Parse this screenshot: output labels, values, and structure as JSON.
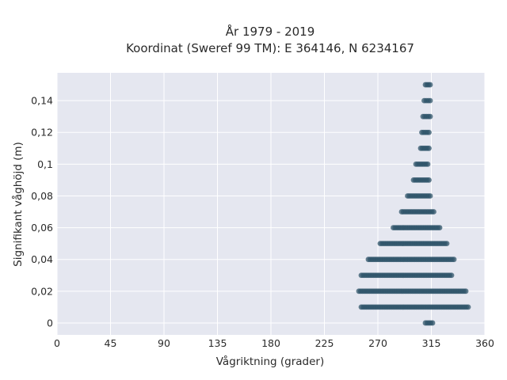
{
  "chart_data": {
    "type": "scatter",
    "title": "År 1979 - 2019",
    "subtitle": "Koordinat (Sweref 99 TM): E 364146, N 6234167",
    "xlabel": "Vågriktning (grader)",
    "ylabel": "Signifikant våghöjd (m)",
    "xlim": [
      0,
      360
    ],
    "ylim": [
      -0.0075,
      0.1575
    ],
    "x_ticks": [
      0,
      45,
      90,
      135,
      180,
      225,
      270,
      315,
      360
    ],
    "x_tick_labels": [
      "0",
      "45",
      "90",
      "135",
      "180",
      "225",
      "270",
      "315",
      "360"
    ],
    "y_ticks": [
      0,
      0.02,
      0.04,
      0.06,
      0.08,
      0.1,
      0.12,
      0.14
    ],
    "y_tick_labels": [
      "0",
      "0,02",
      "0,04",
      "0,06",
      "0,08",
      "0,1",
      "0,12",
      "0,14"
    ],
    "grid": true,
    "background": "#e5e7f0",
    "marker_color": "#2f5469",
    "series": [
      {
        "name": "",
        "ranges": [
          {
            "y": 0.0,
            "x_min": 310,
            "x_max": 316
          },
          {
            "y": 0.01,
            "x_min": 256,
            "x_max": 346
          },
          {
            "y": 0.02,
            "x_min": 254,
            "x_max": 344
          },
          {
            "y": 0.03,
            "x_min": 256,
            "x_max": 332
          },
          {
            "y": 0.04,
            "x_min": 262,
            "x_max": 334
          },
          {
            "y": 0.05,
            "x_min": 272,
            "x_max": 328
          },
          {
            "y": 0.06,
            "x_min": 283,
            "x_max": 322
          },
          {
            "y": 0.07,
            "x_min": 290,
            "x_max": 317
          },
          {
            "y": 0.08,
            "x_min": 295,
            "x_max": 314
          },
          {
            "y": 0.09,
            "x_min": 300,
            "x_max": 313
          },
          {
            "y": 0.1,
            "x_min": 302,
            "x_max": 312
          },
          {
            "y": 0.11,
            "x_min": 306,
            "x_max": 313
          },
          {
            "y": 0.12,
            "x_min": 307,
            "x_max": 313
          },
          {
            "y": 0.13,
            "x_min": 308,
            "x_max": 314
          },
          {
            "y": 0.14,
            "x_min": 309,
            "x_max": 314
          },
          {
            "y": 0.15,
            "x_min": 310,
            "x_max": 314
          }
        ]
      }
    ]
  }
}
